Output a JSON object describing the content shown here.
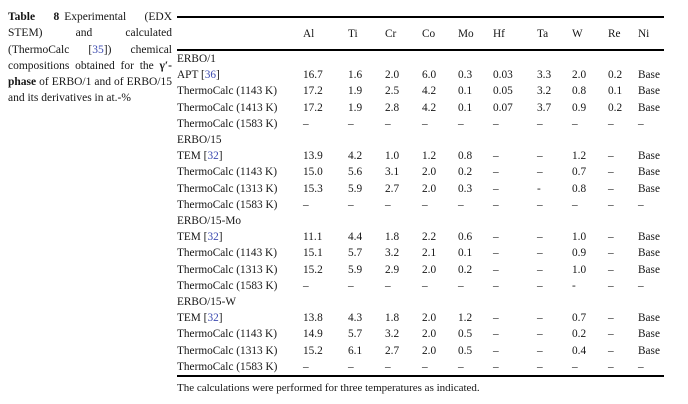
{
  "caption": {
    "label": "Table 8",
    "body_1": "Experimental (EDX STEM) and calculated (ThermoCalc [",
    "cite": "35",
    "body_2": "]) chemical compositions obtained for the ",
    "phase": "γ′-phase",
    "body_3": " of ERBO/1 and of ERBO/15 and its derivatives in at.-%"
  },
  "table": {
    "columns": [
      "Al",
      "Ti",
      "Cr",
      "Co",
      "Mo",
      "Hf",
      "Ta",
      "W",
      "Re",
      "Ni"
    ],
    "rows": [
      {
        "type": "group",
        "label": "ERBO/1"
      },
      {
        "type": "data",
        "label_pre": "APT [",
        "cite": "36",
        "label_post": "]",
        "values": [
          "16.7",
          "1.6",
          "2.0",
          "6.0",
          "0.3",
          "0.03",
          "3.3",
          "2.0",
          "0.2",
          "Base"
        ]
      },
      {
        "type": "data",
        "label": "ThermoCalc (1143 K)",
        "values": [
          "17.2",
          "1.9",
          "2.5",
          "4.2",
          "0.1",
          "0.05",
          "3.2",
          "0.8",
          "0.1",
          "Base"
        ]
      },
      {
        "type": "data",
        "label": "ThermoCalc (1413 K)",
        "values": [
          "17.2",
          "1.9",
          "2.8",
          "4.2",
          "0.1",
          "0.07",
          "3.7",
          "0.9",
          "0.2",
          "Base"
        ]
      },
      {
        "type": "data",
        "label": "ThermoCalc (1583 K)",
        "values": [
          "–",
          "–",
          "–",
          "–",
          "–",
          "–",
          "–",
          "–",
          "–",
          "–"
        ]
      },
      {
        "type": "group",
        "label": "ERBO/15"
      },
      {
        "type": "data",
        "label_pre": "TEM [",
        "cite": "32",
        "label_post": "]",
        "values": [
          "13.9",
          "4.2",
          "1.0",
          "1.2",
          "0.8",
          "–",
          "–",
          "1.2",
          "–",
          "Base"
        ]
      },
      {
        "type": "data",
        "label": "ThermoCalc (1143 K)",
        "values": [
          "15.0",
          "5.6",
          "3.1",
          "2.0",
          "0.2",
          "–",
          "–",
          "0.7",
          "–",
          "Base"
        ]
      },
      {
        "type": "data",
        "label": "ThermoCalc (1313 K)",
        "values": [
          "15.3",
          "5.9",
          "2.7",
          "2.0",
          "0.3",
          "–",
          "-",
          "0.8",
          "–",
          "Base"
        ]
      },
      {
        "type": "data",
        "label": "ThermoCalc (1583 K)",
        "values": [
          "–",
          "–",
          "–",
          "–",
          "–",
          "–",
          "–",
          "–",
          "–",
          "–"
        ]
      },
      {
        "type": "group",
        "label": "ERBO/15-Mo"
      },
      {
        "type": "data",
        "label_pre": "TEM [",
        "cite": "32",
        "label_post": "]",
        "values": [
          "11.1",
          "4.4",
          "1.8",
          "2.2",
          "0.6",
          "–",
          "–",
          "1.0",
          "–",
          "Base"
        ]
      },
      {
        "type": "data",
        "label": "ThermoCalc (1143 K)",
        "values": [
          "15.1",
          "5.7",
          "3.2",
          "2.1",
          "0.1",
          "–",
          "–",
          "0.9",
          "–",
          "Base"
        ]
      },
      {
        "type": "data",
        "label": "ThermoCalc (1313 K)",
        "values": [
          "15.2",
          "5.9",
          "2.9",
          "2.0",
          "0.2",
          "–",
          "–",
          "1.0",
          "–",
          "Base"
        ]
      },
      {
        "type": "data",
        "label": "ThermoCalc (1583 K)",
        "values": [
          "–",
          "–",
          "–",
          "–",
          "–",
          "–",
          "–",
          "-",
          "–",
          "–"
        ]
      },
      {
        "type": "group",
        "label": "ERBO/15-W"
      },
      {
        "type": "data",
        "label_pre": "TEM [",
        "cite": "32",
        "label_post": "]",
        "values": [
          "13.8",
          "4.3",
          "1.8",
          "2.0",
          "1.2",
          "–",
          "–",
          "0.7",
          "–",
          "Base"
        ]
      },
      {
        "type": "data",
        "label": "ThermoCalc (1143 K)",
        "values": [
          "14.9",
          "5.7",
          "3.2",
          "2.0",
          "0.5",
          "–",
          "–",
          "0.2",
          "–",
          "Base"
        ]
      },
      {
        "type": "data",
        "label": "ThermoCalc (1313 K)",
        "values": [
          "15.2",
          "6.1",
          "2.7",
          "2.0",
          "0.5",
          "–",
          "–",
          "0.4",
          "–",
          "Base"
        ]
      },
      {
        "type": "data",
        "label": "ThermoCalc (1583 K)",
        "values": [
          "–",
          "–",
          "–",
          "–",
          "–",
          "–",
          "–",
          "–",
          "–",
          "–"
        ]
      }
    ]
  },
  "footnote": "The calculations were performed for three temperatures as indicated."
}
